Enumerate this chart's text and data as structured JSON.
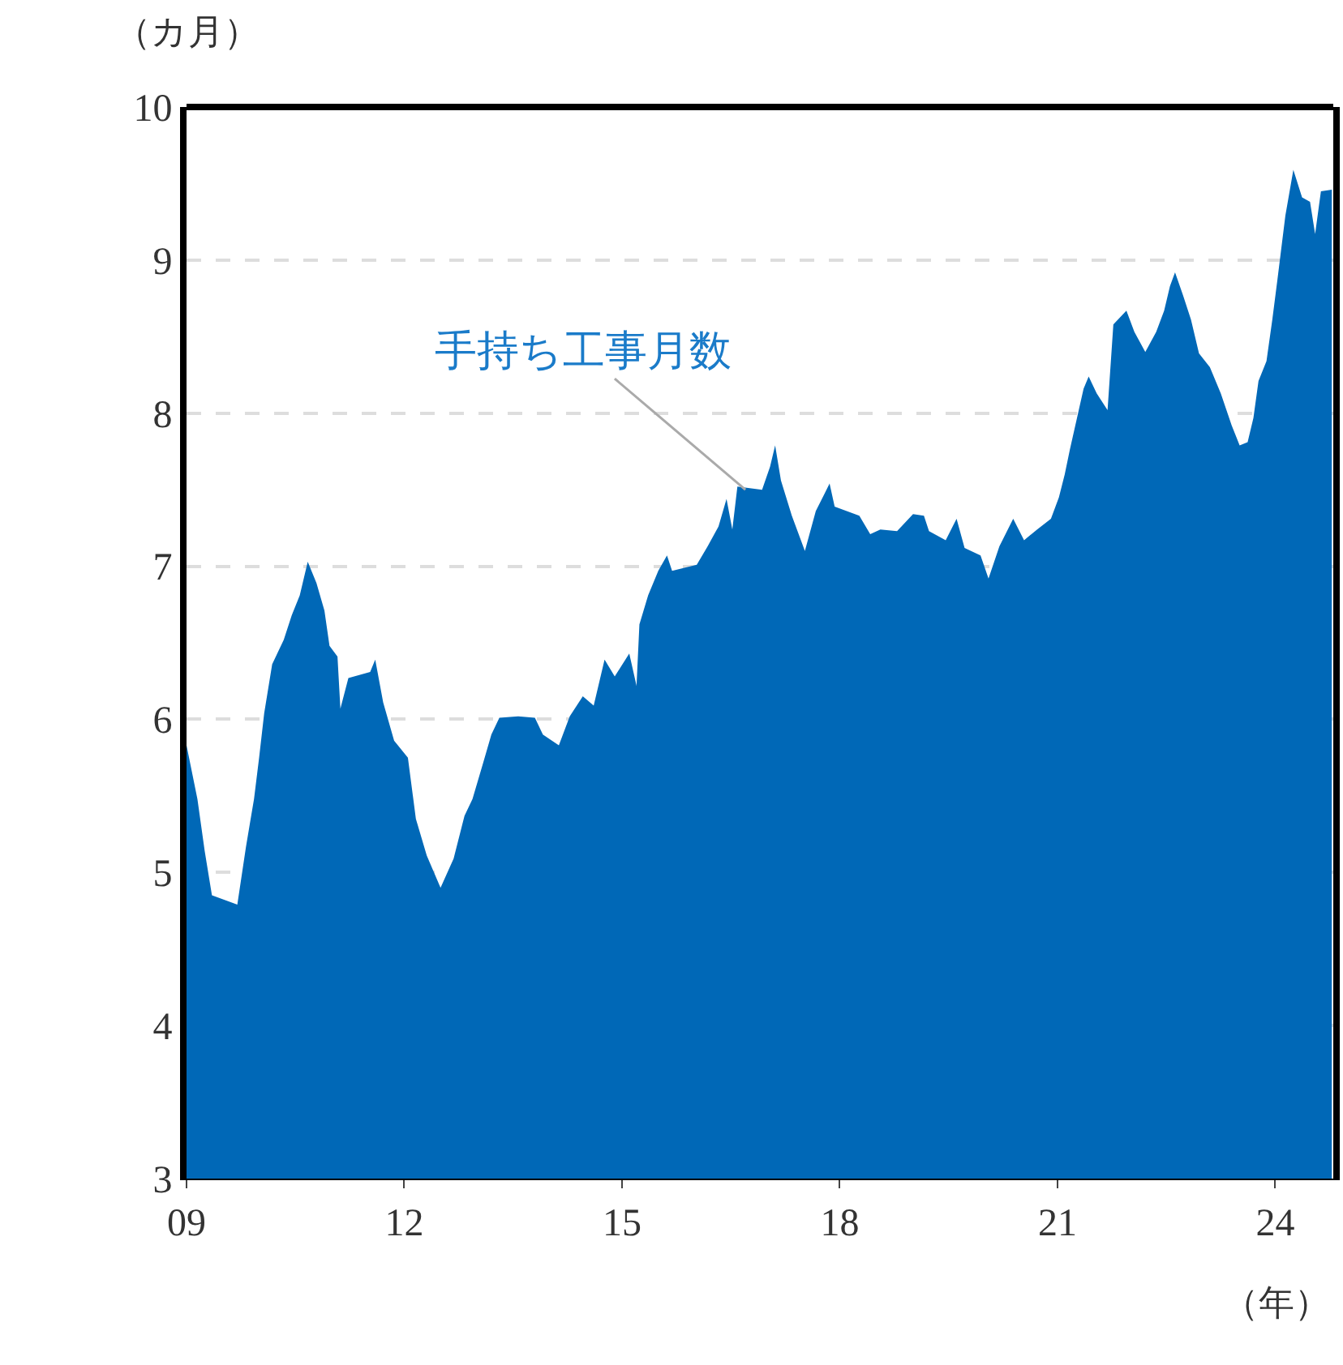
{
  "chart_data": {
    "type": "area",
    "xlabel": "（年）",
    "ylabel": "（カ月）",
    "color": "#0068b7",
    "grid": "y",
    "xlim": [
      2009,
      2024.8
    ],
    "ylim": [
      3,
      10
    ],
    "xticks": [
      {
        "value": 2009,
        "label": "09"
      },
      {
        "value": 2012,
        "label": "12"
      },
      {
        "value": 2015,
        "label": "15"
      },
      {
        "value": 2018,
        "label": "18"
      },
      {
        "value": 2021,
        "label": "21"
      },
      {
        "value": 2024,
        "label": "24"
      }
    ],
    "yticks": [
      3,
      4,
      5,
      6,
      7,
      8,
      9,
      10
    ],
    "annotations": [
      {
        "text": "手持ち工事月数",
        "x": 2016.7,
        "y": 7.5
      }
    ],
    "x": [
      2009.0,
      2009.15,
      2009.25,
      2009.35,
      2009.7,
      2009.82,
      2009.93,
      2010.0,
      2010.07,
      2010.18,
      2010.34,
      2010.45,
      2010.56,
      2010.67,
      2010.79,
      2010.9,
      2010.97,
      2011.08,
      2011.12,
      2011.23,
      2011.53,
      2011.6,
      2011.71,
      2011.86,
      2012.05,
      2012.16,
      2012.31,
      2012.5,
      2012.68,
      2012.83,
      2012.94,
      2013.09,
      2013.2,
      2013.31,
      2013.57,
      2013.8,
      2013.91,
      2014.13,
      2014.28,
      2014.46,
      2014.61,
      2014.76,
      2014.9,
      2015.1,
      2015.2,
      2015.24,
      2015.36,
      2015.5,
      2015.62,
      2015.69,
      2016.03,
      2016.18,
      2016.33,
      2016.44,
      2016.52,
      2016.59,
      2016.93,
      2017.04,
      2017.11,
      2017.19,
      2017.34,
      2017.52,
      2017.67,
      2017.86,
      2017.93,
      2018.27,
      2018.42,
      2018.56,
      2018.79,
      2019.01,
      2019.16,
      2019.23,
      2019.46,
      2019.61,
      2019.72,
      2019.94,
      2020.05,
      2020.2,
      2020.39,
      2020.54,
      2020.72,
      2020.91,
      2021.02,
      2021.1,
      2021.17,
      2021.36,
      2021.43,
      2021.54,
      2021.69,
      2021.77,
      2021.95,
      2022.06,
      2022.21,
      2022.36,
      2022.47,
      2022.55,
      2022.62,
      2022.73,
      2022.84,
      2022.95,
      2023.1,
      2023.25,
      2023.4,
      2023.51,
      2023.62,
      2023.7,
      2023.77,
      2023.88,
      2023.96,
      2024.03,
      2024.14,
      2024.25,
      2024.37,
      2024.48,
      2024.55,
      2024.63,
      2024.78
    ],
    "values": [
      5.83,
      5.48,
      5.14,
      4.85,
      4.79,
      5.17,
      5.48,
      5.75,
      6.04,
      6.36,
      6.52,
      6.68,
      6.81,
      7.03,
      6.89,
      6.71,
      6.48,
      6.41,
      6.07,
      6.27,
      6.31,
      6.39,
      6.11,
      5.86,
      5.75,
      5.35,
      5.11,
      4.9,
      5.09,
      5.37,
      5.48,
      5.72,
      5.9,
      6.01,
      6.02,
      6.01,
      5.9,
      5.83,
      6.02,
      6.15,
      6.09,
      6.39,
      6.28,
      6.43,
      6.22,
      6.62,
      6.81,
      6.97,
      7.07,
      6.97,
      7.01,
      7.13,
      7.26,
      7.44,
      7.24,
      7.52,
      7.5,
      7.65,
      7.79,
      7.56,
      7.33,
      7.1,
      7.36,
      7.54,
      7.39,
      7.33,
      7.21,
      7.24,
      7.23,
      7.34,
      7.33,
      7.23,
      7.17,
      7.31,
      7.12,
      7.07,
      6.92,
      7.13,
      7.31,
      7.17,
      7.24,
      7.31,
      7.45,
      7.6,
      7.76,
      8.16,
      8.24,
      8.13,
      8.02,
      8.58,
      8.67,
      8.53,
      8.4,
      8.53,
      8.67,
      8.83,
      8.92,
      8.77,
      8.61,
      8.39,
      8.3,
      8.13,
      7.92,
      7.79,
      7.81,
      7.97,
      8.21,
      8.34,
      8.61,
      8.87,
      9.29,
      9.59,
      9.41,
      9.38,
      9.17,
      9.45,
      9.46
    ]
  }
}
